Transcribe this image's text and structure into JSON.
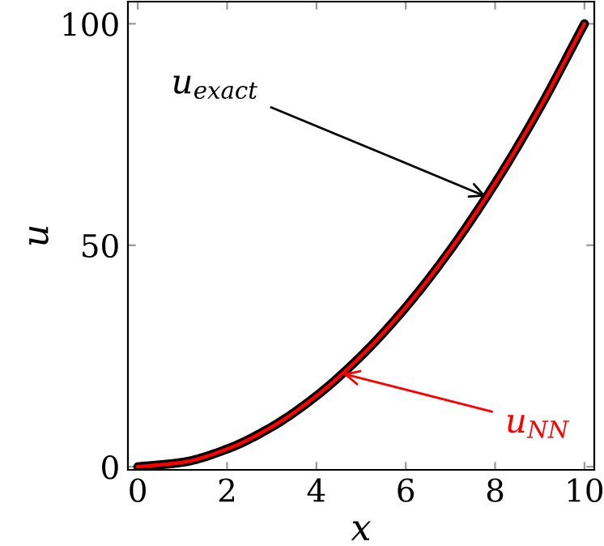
{
  "chart_data": {
    "type": "line",
    "xlabel": "x",
    "ylabel": "u",
    "x": [
      0,
      1,
      2,
      3,
      4,
      5,
      6,
      7,
      8,
      9,
      10
    ],
    "series": [
      {
        "color": "#000000",
        "values": [
          0,
          1,
          4,
          9,
          16,
          25,
          36,
          49,
          64,
          81,
          100
        ]
      },
      {
        "color": "#ff0000",
        "values": [
          0,
          1,
          4,
          9,
          16,
          25,
          36,
          49,
          64,
          81,
          100
        ]
      }
    ],
    "annotations": [
      {
        "text": "u$_{exact}$",
        "x": 7.8,
        "y": 61
      },
      {
        "text": "u$_{NN}$",
        "x": 4.6,
        "y": 21
      }
    ],
    "xlim": [
      -0.22,
      10.22
    ],
    "ylim": [
      -0.7,
      105
    ],
    "xticks": [
      0,
      2,
      4,
      6,
      8,
      10
    ],
    "yticks": [
      0,
      50,
      100
    ],
    "grid": false,
    "legend": false
  }
}
